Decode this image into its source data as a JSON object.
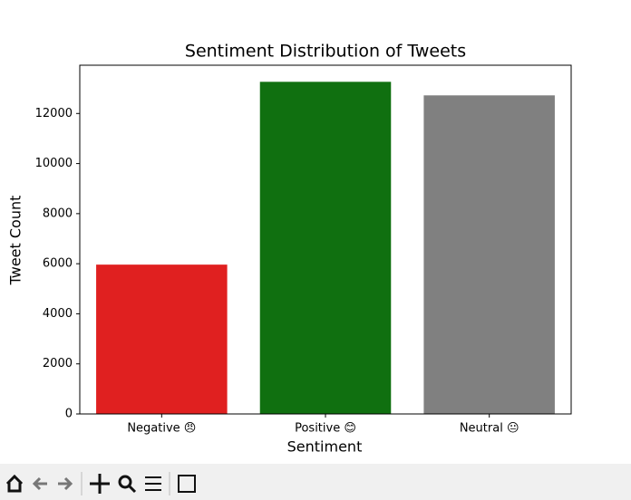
{
  "chart_data": {
    "type": "bar",
    "title": "Sentiment Distribution of Tweets",
    "xlabel": "Sentiment",
    "ylabel": "Tweet Count",
    "categories": [
      "Negative 😠",
      "Positive 😊",
      "Neutral 😐"
    ],
    "values": [
      5964,
      13265,
      12724
    ],
    "colors": [
      "#e02020",
      "#107010",
      "#808080"
    ],
    "ylim": [
      0,
      13928
    ],
    "yticks": [
      0,
      2000,
      4000,
      6000,
      8000,
      10000,
      12000
    ],
    "grid": false
  }
}
